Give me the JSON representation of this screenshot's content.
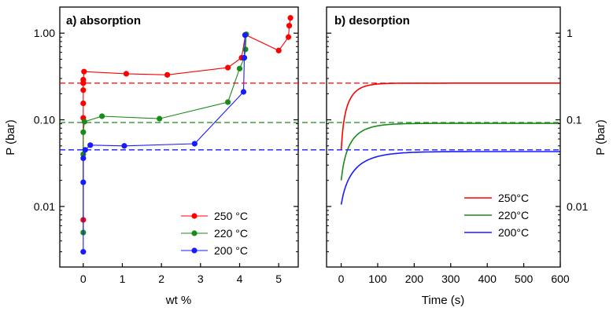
{
  "chart_data": [
    {
      "panel": "a",
      "type": "line",
      "title": "a) absorption",
      "xlabel": "wt %",
      "ylabel": "P (bar)",
      "xlim": [
        -0.6,
        5.5
      ],
      "ylim": [
        0.002,
        2.0
      ],
      "yscale": "log",
      "xticks": [
        0,
        1,
        2,
        3,
        4,
        5
      ],
      "xtick_labels": [
        "0",
        "1",
        "2",
        "3",
        "4",
        "5"
      ],
      "yticks": [
        0.01,
        0.1,
        1
      ],
      "ytick_labels": [
        "0.01",
        "0.10",
        "1.00"
      ],
      "legend_position": "lower-right",
      "series": [
        {
          "name": "250 °C",
          "color": "#ff0000",
          "marker": "circle",
          "points": [
            [
              0.0,
              0.007
            ],
            [
              0.0,
              0.105
            ],
            [
              0.0,
              0.155
            ],
            [
              0.0,
              0.22
            ],
            [
              0.0,
              0.265
            ],
            [
              0.0,
              0.29
            ],
            [
              0.02,
              0.36
            ],
            [
              1.1,
              0.34
            ],
            [
              2.15,
              0.33
            ],
            [
              3.7,
              0.4
            ],
            [
              4.05,
              0.52
            ],
            [
              4.15,
              0.96
            ],
            [
              5.0,
              0.63
            ],
            [
              5.25,
              0.9
            ],
            [
              5.27,
              1.22
            ],
            [
              5.3,
              1.5
            ]
          ]
        },
        {
          "name": "220 °C",
          "color": "#1a8a1a",
          "marker": "circle",
          "points": [
            [
              0.0,
              0.005
            ],
            [
              0.0,
              0.04
            ],
            [
              0.0,
              0.072
            ],
            [
              0.03,
              0.095
            ],
            [
              0.48,
              0.11
            ],
            [
              1.95,
              0.103
            ],
            [
              3.7,
              0.16
            ],
            [
              4.0,
              0.39
            ],
            [
              4.12,
              0.52
            ],
            [
              4.15,
              0.65
            ],
            [
              4.17,
              0.97
            ]
          ]
        },
        {
          "name": "200 °C",
          "color": "#1a1aff",
          "marker": "circle",
          "points": [
            [
              0.0,
              0.003
            ],
            [
              0.0,
              0.019
            ],
            [
              0.0,
              0.036
            ],
            [
              0.05,
              0.045
            ],
            [
              0.18,
              0.051
            ],
            [
              1.05,
              0.05
            ],
            [
              2.85,
              0.053
            ],
            [
              4.1,
              0.21
            ],
            [
              4.12,
              0.52
            ],
            [
              4.14,
              0.95
            ]
          ]
        }
      ]
    },
    {
      "panel": "b",
      "type": "line",
      "title": "b) desorption",
      "xlabel": "Time (s)",
      "ylabel": "P (bar)",
      "xlim": [
        -40,
        600
      ],
      "ylim": [
        0.002,
        2.0
      ],
      "yscale": "log",
      "xticks": [
        0,
        100,
        200,
        300,
        400,
        500,
        600
      ],
      "xtick_labels": [
        "0",
        "100",
        "200",
        "300",
        "400",
        "500",
        "600"
      ],
      "yticks": [
        0.01,
        0.1,
        1
      ],
      "ytick_labels": [
        "0.01",
        "0.1",
        "1"
      ],
      "legend_position": "lower-right",
      "series": [
        {
          "name": "250°C",
          "color": "#ff0000",
          "start": 0.045,
          "end": 0.265,
          "tau": 28
        },
        {
          "name": "220°C",
          "color": "#1a8a1a",
          "start": 0.02,
          "end": 0.091,
          "tau": 40
        },
        {
          "name": "200°C",
          "color": "#1a1aff",
          "start": 0.0105,
          "end": 0.043,
          "tau": 55
        }
      ]
    }
  ],
  "reference_lines": [
    {
      "value": 0.265,
      "color": "#ff0000"
    },
    {
      "value": 0.093,
      "color": "#1a8a1a"
    },
    {
      "value": 0.045,
      "color": "#1a1aff"
    }
  ]
}
